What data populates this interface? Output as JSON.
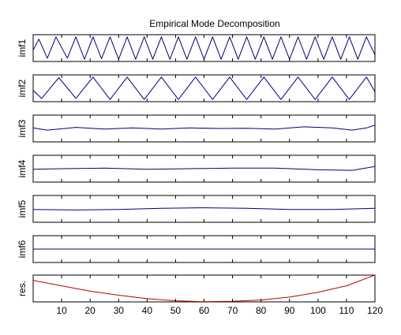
{
  "chart_data": {
    "type": "line",
    "title": "Empirical Mode Decomposition",
    "xlim": [
      0,
      120
    ],
    "x_ticks": [
      10,
      20,
      30,
      40,
      50,
      60,
      70,
      80,
      90,
      100,
      110,
      120
    ],
    "colors": {
      "imf": "#00007f",
      "residual": "#c00000",
      "axes": "#000000"
    },
    "panels": [
      {
        "name": "imf1",
        "ylim": [
          -1.2,
          1.2
        ],
        "x": [
          0,
          2,
          5,
          8,
          12,
          15,
          18,
          21,
          24,
          27,
          30,
          33,
          36,
          39,
          42,
          45,
          48,
          51,
          54,
          57,
          60,
          63,
          66,
          69,
          72,
          75,
          78,
          81,
          84,
          87,
          90,
          93,
          96,
          99,
          102,
          105,
          108,
          111,
          114,
          117,
          120
        ],
        "y": [
          -0.2,
          0.8,
          -0.9,
          1.0,
          -0.9,
          1.0,
          -1.0,
          1.0,
          -0.95,
          1.0,
          -1.0,
          1.0,
          -1.0,
          1.0,
          -1.0,
          1.0,
          -1.0,
          1.0,
          -1.0,
          1.0,
          -1.0,
          1.0,
          -1.0,
          1.0,
          -1.0,
          1.0,
          -1.0,
          1.0,
          -1.0,
          1.0,
          -1.0,
          1.0,
          -1.0,
          1.0,
          -1.0,
          1.0,
          -1.0,
          1.0,
          -1.0,
          1.0,
          -0.6
        ]
      },
      {
        "name": "imf2",
        "ylim": [
          -1.2,
          1.2
        ],
        "x": [
          0,
          3,
          9,
          15,
          21,
          27,
          33,
          39,
          45,
          51,
          57,
          63,
          69,
          75,
          81,
          87,
          93,
          99,
          105,
          111,
          117,
          120
        ],
        "y": [
          -0.2,
          -0.9,
          0.95,
          -0.9,
          1.0,
          -1.0,
          1.0,
          -1.0,
          1.0,
          -1.0,
          1.0,
          -1.0,
          1.0,
          -1.0,
          1.0,
          -1.0,
          1.0,
          -1.0,
          1.0,
          -1.0,
          1.0,
          -0.3
        ]
      },
      {
        "name": "imf3",
        "ylim": [
          -1.2,
          1.2
        ],
        "x": [
          0,
          5,
          15,
          25,
          35,
          45,
          55,
          65,
          75,
          85,
          95,
          105,
          112,
          117,
          120
        ],
        "y": [
          0.05,
          -0.15,
          0.1,
          -0.05,
          0.05,
          -0.05,
          0.05,
          0.0,
          0.02,
          -0.05,
          0.15,
          0.05,
          -0.15,
          0.05,
          0.3
        ]
      },
      {
        "name": "imf4",
        "ylim": [
          -1.2,
          1.2
        ],
        "x": [
          0,
          10,
          25,
          40,
          55,
          70,
          85,
          100,
          112,
          120
        ],
        "y": [
          -0.05,
          0.0,
          0.05,
          -0.05,
          0.0,
          0.05,
          0.05,
          -0.1,
          -0.15,
          0.2
        ]
      },
      {
        "name": "imf5",
        "ylim": [
          -1.2,
          1.2
        ],
        "x": [
          0,
          15,
          30,
          45,
          60,
          75,
          90,
          105,
          120
        ],
        "y": [
          -0.05,
          -0.1,
          -0.05,
          0.05,
          0.1,
          0.05,
          -0.05,
          -0.05,
          0.05
        ]
      },
      {
        "name": "imf6",
        "ylim": [
          -1.2,
          1.2
        ],
        "x": [
          0,
          120
        ],
        "y": [
          0.0,
          0.0
        ]
      },
      {
        "name": "res.",
        "ylim": [
          0,
          1
        ],
        "x": [
          0,
          10,
          20,
          30,
          40,
          50,
          60,
          70,
          80,
          90,
          100,
          110,
          120
        ],
        "y": [
          0.8,
          0.6,
          0.4,
          0.25,
          0.12,
          0.04,
          0.01,
          0.02,
          0.07,
          0.18,
          0.36,
          0.6,
          1.0
        ]
      }
    ]
  }
}
